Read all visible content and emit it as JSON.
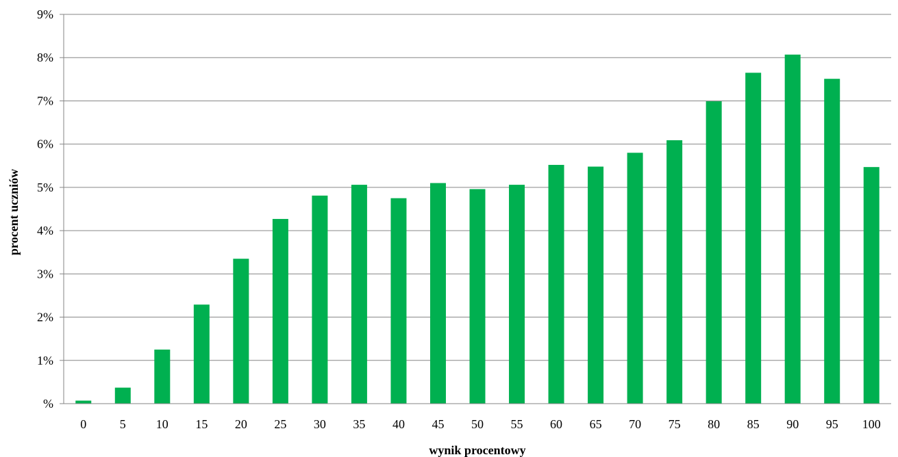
{
  "chart_data": {
    "type": "bar",
    "title": "",
    "xlabel": "wynik procentowy",
    "ylabel": "procent uczniów",
    "categories": [
      "0",
      "5",
      "10",
      "15",
      "20",
      "25",
      "30",
      "35",
      "40",
      "45",
      "50",
      "55",
      "60",
      "65",
      "70",
      "75",
      "80",
      "85",
      "90",
      "95",
      "100"
    ],
    "values": [
      0.07,
      0.37,
      1.25,
      2.29,
      3.35,
      4.27,
      4.81,
      5.06,
      4.75,
      5.1,
      4.96,
      5.06,
      5.52,
      5.48,
      5.8,
      6.09,
      6.99,
      7.65,
      8.07,
      7.51,
      5.47
    ],
    "ylim": [
      0,
      9
    ],
    "yticks": [
      "%",
      "1%",
      "2%",
      "3%",
      "4%",
      "5%",
      "6%",
      "7%",
      "8%",
      "9%"
    ],
    "grid": true,
    "bar_color": "#00b050",
    "grid_color": "#868686",
    "legend": "none"
  }
}
